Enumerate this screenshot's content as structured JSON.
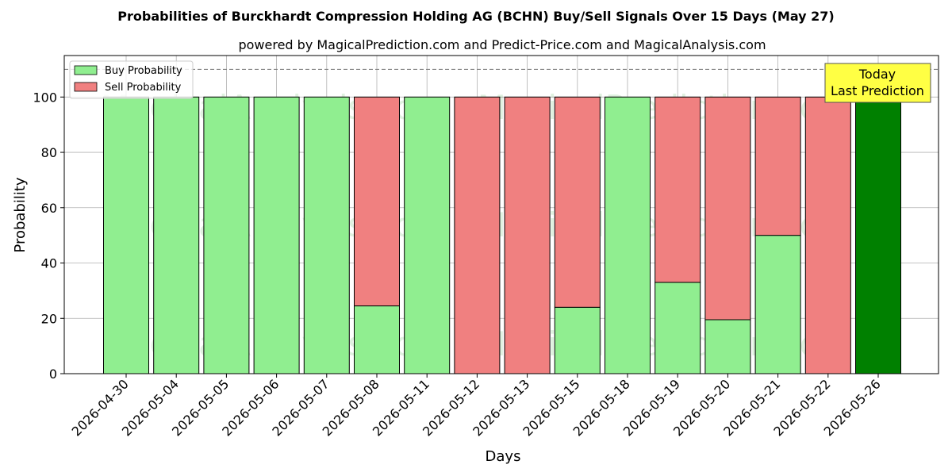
{
  "title": "Probabilities of Burckhardt Compression Holding AG (BCHN) Buy/Sell Signals Over 15 Days (May 27)",
  "subtitle": "powered by MagicalPrediction.com and Predict-Price.com and MagicalAnalysis.com",
  "watermarks": [
    "MagicalAnalysis.com",
    "MagicalPrediction.com"
  ],
  "annotation": {
    "line1": "Today",
    "line2": "Last Prediction",
    "color": "#ffff44"
  },
  "colors": {
    "buy": "#90ee90",
    "sell": "#f08080",
    "today": "#008000"
  },
  "chart_data": {
    "type": "bar",
    "stacked": true,
    "xlabel": "Days",
    "ylabel": "Probability",
    "ylim": [
      0,
      115
    ],
    "yticks": [
      0,
      20,
      40,
      60,
      80,
      100
    ],
    "reference_line": 110,
    "grid": true,
    "legend_position": "top-left",
    "categories": [
      "2026-04-30",
      "2026-05-04",
      "2026-05-05",
      "2026-05-06",
      "2026-05-07",
      "2026-05-08",
      "2026-05-11",
      "2026-05-12",
      "2026-05-13",
      "2026-05-15",
      "2026-05-18",
      "2026-05-19",
      "2026-05-20",
      "2026-05-21",
      "2026-05-22",
      "2026-05-26"
    ],
    "series": [
      {
        "name": "Buy Probability",
        "values": [
          100,
          100,
          100,
          100,
          100,
          24.5,
          100,
          0,
          0,
          24,
          100,
          33,
          19.5,
          50,
          0,
          100
        ]
      },
      {
        "name": "Sell Probability",
        "values": [
          0,
          0,
          0,
          0,
          0,
          75.5,
          0,
          100,
          100,
          76,
          0,
          67,
          80.5,
          50,
          100,
          0
        ]
      }
    ]
  }
}
